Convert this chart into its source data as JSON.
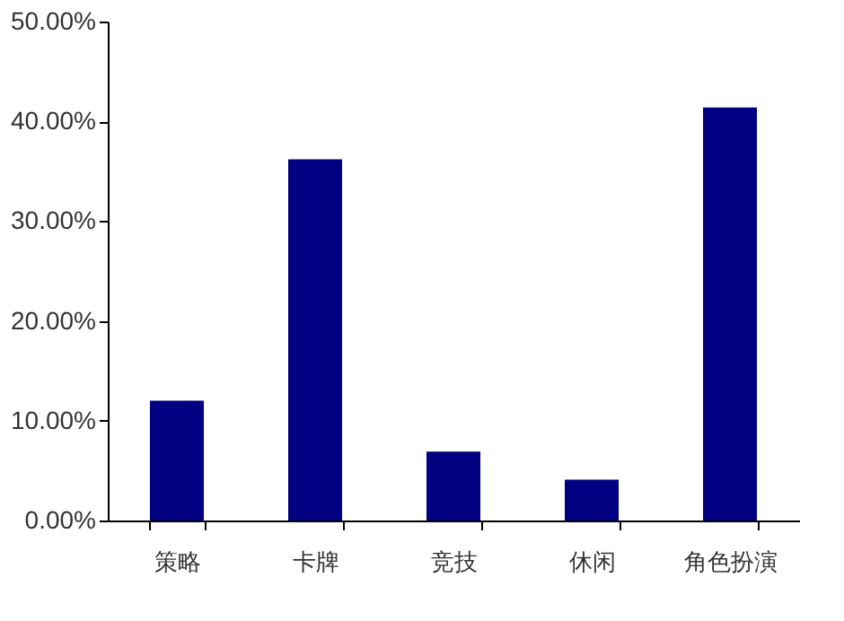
{
  "chart_data": {
    "type": "bar",
    "categories": [
      "策略",
      "卡牌",
      "竞技",
      "休闲",
      "角色扮演"
    ],
    "values": [
      12.0,
      36.2,
      6.9,
      4.1,
      41.4
    ],
    "color": "#000080",
    "ylim": [
      0,
      50
    ],
    "yticks": [
      {
        "value": 0,
        "label": "0.00%"
      },
      {
        "value": 10,
        "label": "10.00%"
      },
      {
        "value": 20,
        "label": "20.00%"
      },
      {
        "value": 30,
        "label": "30.00%"
      },
      {
        "value": 40,
        "label": "40.00%"
      },
      {
        "value": 50,
        "label": "50.00%"
      }
    ],
    "grid": false
  }
}
